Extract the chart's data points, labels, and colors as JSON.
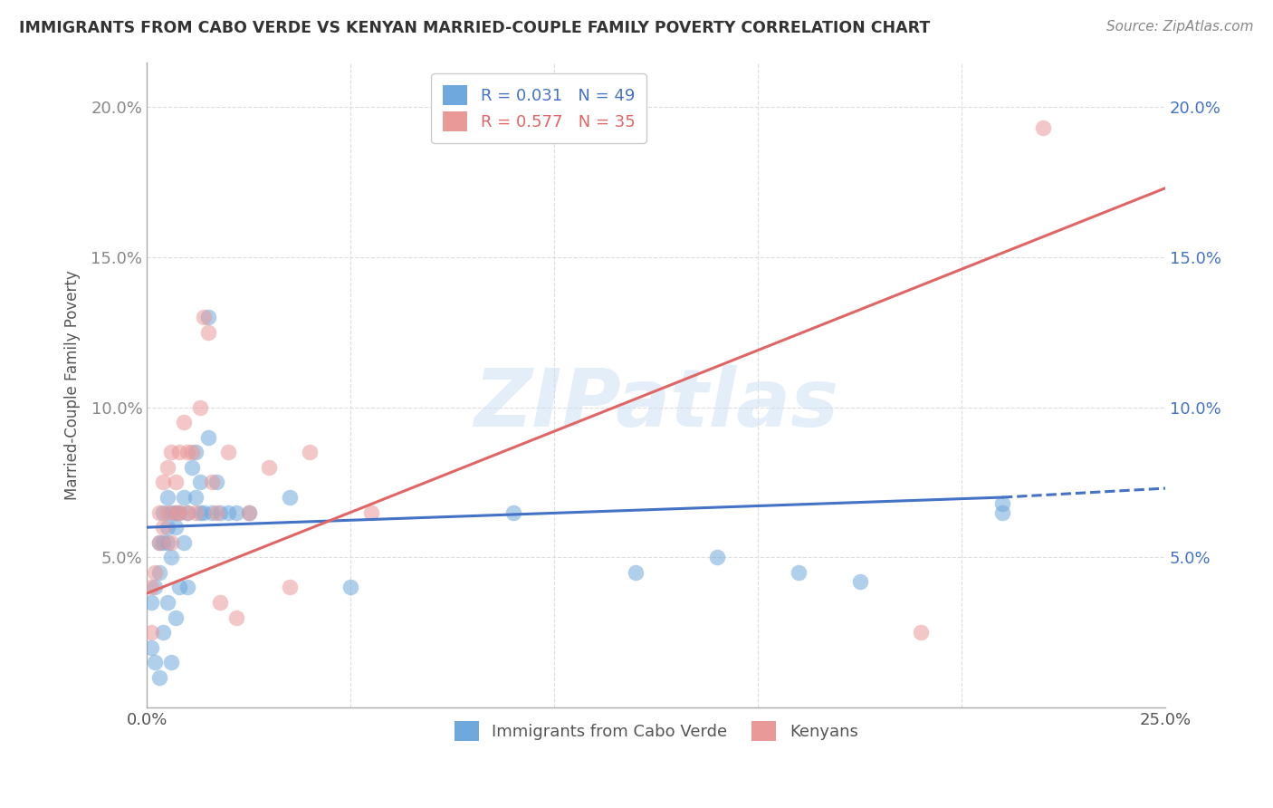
{
  "title": "IMMIGRANTS FROM CABO VERDE VS KENYAN MARRIED-COUPLE FAMILY POVERTY CORRELATION CHART",
  "source": "Source: ZipAtlas.com",
  "ylabel": "Married-Couple Family Poverty",
  "xlim": [
    0.0,
    0.25
  ],
  "ylim": [
    0.0,
    0.215
  ],
  "color_blue": "#6fa8dc",
  "color_pink": "#ea9999",
  "color_blue_line": "#4472c4",
  "color_pink_line": "#e06666",
  "watermark": "ZIPatlas",
  "cabo_verde_x": [
    0.001,
    0.001,
    0.002,
    0.002,
    0.003,
    0.003,
    0.003,
    0.004,
    0.004,
    0.004,
    0.005,
    0.005,
    0.005,
    0.005,
    0.006,
    0.006,
    0.006,
    0.007,
    0.007,
    0.007,
    0.008,
    0.008,
    0.009,
    0.009,
    0.01,
    0.01,
    0.011,
    0.012,
    0.012,
    0.013,
    0.013,
    0.014,
    0.015,
    0.015,
    0.016,
    0.017,
    0.018,
    0.02,
    0.022,
    0.025,
    0.035,
    0.05,
    0.09,
    0.12,
    0.14,
    0.16,
    0.175,
    0.21,
    0.21
  ],
  "cabo_verde_y": [
    0.035,
    0.02,
    0.04,
    0.015,
    0.055,
    0.045,
    0.01,
    0.065,
    0.055,
    0.025,
    0.07,
    0.06,
    0.055,
    0.035,
    0.065,
    0.05,
    0.015,
    0.065,
    0.06,
    0.03,
    0.065,
    0.04,
    0.07,
    0.055,
    0.065,
    0.04,
    0.08,
    0.085,
    0.07,
    0.075,
    0.065,
    0.065,
    0.09,
    0.13,
    0.065,
    0.075,
    0.065,
    0.065,
    0.065,
    0.065,
    0.07,
    0.04,
    0.065,
    0.045,
    0.05,
    0.045,
    0.042,
    0.068,
    0.065
  ],
  "kenyan_x": [
    0.001,
    0.001,
    0.002,
    0.003,
    0.003,
    0.004,
    0.004,
    0.005,
    0.005,
    0.006,
    0.006,
    0.007,
    0.007,
    0.008,
    0.008,
    0.009,
    0.01,
    0.01,
    0.011,
    0.012,
    0.013,
    0.014,
    0.015,
    0.016,
    0.017,
    0.018,
    0.02,
    0.022,
    0.025,
    0.03,
    0.035,
    0.04,
    0.055,
    0.19,
    0.22
  ],
  "kenyan_y": [
    0.04,
    0.025,
    0.045,
    0.065,
    0.055,
    0.075,
    0.06,
    0.08,
    0.065,
    0.085,
    0.055,
    0.075,
    0.065,
    0.085,
    0.065,
    0.095,
    0.085,
    0.065,
    0.085,
    0.065,
    0.1,
    0.13,
    0.125,
    0.075,
    0.065,
    0.035,
    0.085,
    0.03,
    0.065,
    0.08,
    0.04,
    0.085,
    0.065,
    0.025,
    0.193
  ],
  "blue_line_x0": 0.0,
  "blue_line_x_solid_end": 0.21,
  "blue_line_x_dash_end": 0.25,
  "blue_line_y0": 0.06,
  "blue_line_y_solid_end": 0.07,
  "blue_line_y_dash_end": 0.073,
  "pink_line_x0": 0.0,
  "pink_line_x1": 0.25,
  "pink_line_y0": 0.038,
  "pink_line_y1": 0.173
}
